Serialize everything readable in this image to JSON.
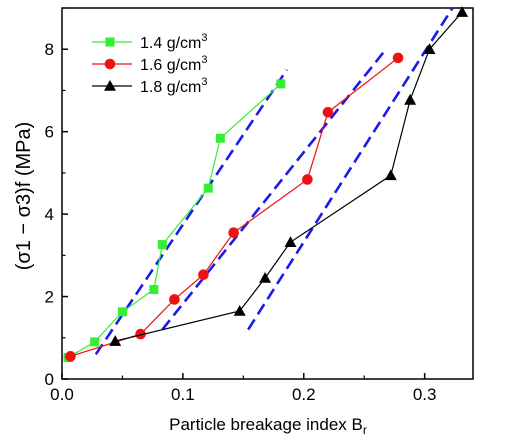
{
  "chart_data": {
    "type": "scatter",
    "xlabel": "Particle breakage index B",
    "xlabel_subscript": "r",
    "ylabel": "(σ1 − σ3)f (MPa)",
    "xlim": [
      0,
      0.34
    ],
    "ylim": [
      0,
      9
    ],
    "x_ticks": [
      0.0,
      0.1,
      0.2,
      0.3
    ],
    "x_tick_labels": [
      "0.0",
      "0.1",
      "0.2",
      "0.3"
    ],
    "y_ticks": [
      0,
      2,
      4,
      6,
      8
    ],
    "y_tick_labels": [
      "0",
      "2",
      "4",
      "6",
      "8"
    ],
    "legend_position": "top-left",
    "series": [
      {
        "name": "1.4 g/cm3",
        "color": "#33ee33",
        "marker": "square",
        "x": [
          0.005,
          0.027,
          0.05,
          0.076,
          0.083,
          0.121,
          0.131,
          0.181
        ],
        "y": [
          0.52,
          0.9,
          1.63,
          2.17,
          3.26,
          4.63,
          5.84,
          7.16
        ]
      },
      {
        "name": "1.6 g/cm3",
        "color": "#ee1111",
        "marker": "circle",
        "x": [
          0.007,
          0.065,
          0.093,
          0.117,
          0.142,
          0.203,
          0.22,
          0.278
        ],
        "y": [
          0.55,
          1.09,
          1.93,
          2.53,
          3.55,
          4.84,
          6.47,
          7.79
        ]
      },
      {
        "name": "1.8 g/cm3",
        "color": "#000000",
        "marker": "triangle",
        "x": [
          0.044,
          0.147,
          0.168,
          0.189,
          0.272,
          0.288,
          0.304,
          0.331
        ],
        "y": [
          0.92,
          1.65,
          2.45,
          3.32,
          4.94,
          6.77,
          8.0,
          8.9
        ]
      }
    ],
    "trend_lines": {
      "color": "#1a1aee",
      "style": "dashed",
      "lines": [
        {
          "x": [
            0.028,
            0.186
          ],
          "y": [
            0.6,
            7.5
          ]
        },
        {
          "x": [
            0.083,
            0.268
          ],
          "y": [
            1.2,
            8.0
          ]
        },
        {
          "x": [
            0.154,
            0.323
          ],
          "y": [
            1.2,
            9.0
          ]
        }
      ]
    }
  }
}
